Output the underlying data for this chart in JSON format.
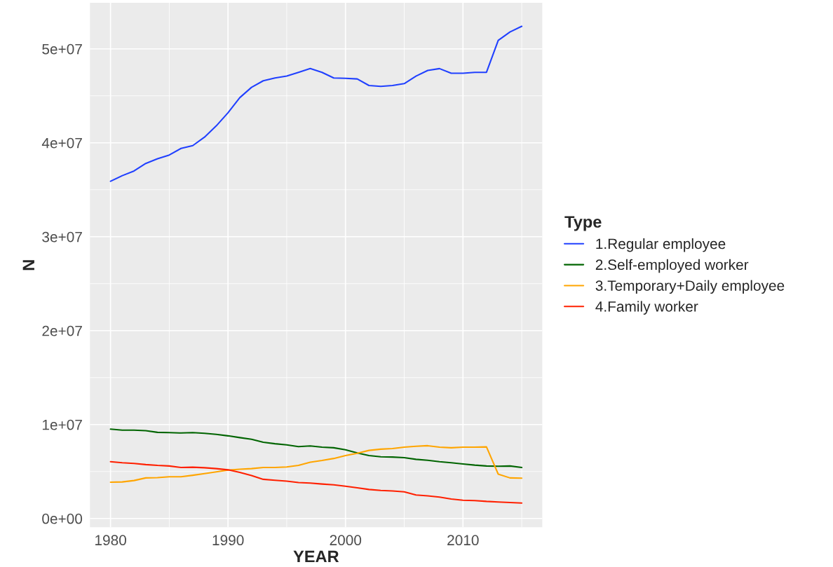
{
  "chart_data": {
    "type": "line",
    "xlabel": "YEAR",
    "ylabel": "N",
    "legend_title": "Type",
    "legend": "right",
    "grid": true,
    "x": [
      1980,
      1981,
      1982,
      1983,
      1984,
      1985,
      1986,
      1987,
      1988,
      1989,
      1990,
      1991,
      1992,
      1993,
      1994,
      1995,
      1996,
      1997,
      1998,
      1999,
      2000,
      2001,
      2002,
      2003,
      2004,
      2005,
      2006,
      2007,
      2008,
      2009,
      2010,
      2011,
      2012,
      2013,
      2014,
      2015
    ],
    "xlim": [
      1978.25,
      2016.75
    ],
    "xticks": [
      1980,
      1990,
      2000,
      2010
    ],
    "ylim": [
      -940000,
      54900000
    ],
    "yticks": [
      {
        "value": 0,
        "label": "0e+00"
      },
      {
        "value": 10000000,
        "label": "1e+07"
      },
      {
        "value": 20000000,
        "label": "2e+07"
      },
      {
        "value": 30000000,
        "label": "3e+07"
      },
      {
        "value": 40000000,
        "label": "4e+07"
      },
      {
        "value": 50000000,
        "label": "5e+07"
      }
    ],
    "series": [
      {
        "name": "1.Regular employee",
        "color": "#2040ff",
        "values": [
          35900000,
          36500000,
          37000000,
          37800000,
          38300000,
          38700000,
          39400000,
          39700000,
          40600000,
          41800000,
          43200000,
          44800000,
          45900000,
          46600000,
          46900000,
          47100000,
          47500000,
          47900000,
          47500000,
          46900000,
          46860000,
          46800000,
          46100000,
          46000000,
          46100000,
          46300000,
          47100000,
          47700000,
          47900000,
          47400000,
          47400000,
          47500000,
          47500000,
          50900000,
          51800000,
          52400000
        ]
      },
      {
        "name": "2.Self-employed worker",
        "color": "#006400",
        "values": [
          9510000,
          9410000,
          9410000,
          9350000,
          9170000,
          9140000,
          9100000,
          9140000,
          9070000,
          8950000,
          8800000,
          8610000,
          8430000,
          8120000,
          7960000,
          7840000,
          7650000,
          7720000,
          7590000,
          7530000,
          7310000,
          6980000,
          6700000,
          6570000,
          6540000,
          6480000,
          6300000,
          6200000,
          6050000,
          5930000,
          5800000,
          5680000,
          5590000,
          5560000,
          5590000,
          5430000
        ]
      },
      {
        "name": "3.Temporary+Daily employee",
        "color": "#ffa500",
        "values": [
          3860000,
          3890000,
          4040000,
          4320000,
          4350000,
          4440000,
          4440000,
          4600000,
          4780000,
          4970000,
          5150000,
          5250000,
          5310000,
          5430000,
          5430000,
          5490000,
          5650000,
          5990000,
          6170000,
          6390000,
          6700000,
          6940000,
          7250000,
          7380000,
          7440000,
          7590000,
          7690000,
          7750000,
          7590000,
          7530000,
          7590000,
          7590000,
          7620000,
          4720000,
          4320000,
          4290000
        ]
      },
      {
        "name": "4.Family worker",
        "color": "#ff2000",
        "values": [
          6050000,
          5930000,
          5860000,
          5740000,
          5650000,
          5590000,
          5430000,
          5460000,
          5400000,
          5310000,
          5180000,
          4910000,
          4570000,
          4170000,
          4070000,
          3980000,
          3830000,
          3770000,
          3670000,
          3580000,
          3430000,
          3270000,
          3090000,
          2990000,
          2930000,
          2840000,
          2500000,
          2410000,
          2280000,
          2070000,
          1940000,
          1910000,
          1820000,
          1760000,
          1700000,
          1640000
        ]
      }
    ]
  }
}
